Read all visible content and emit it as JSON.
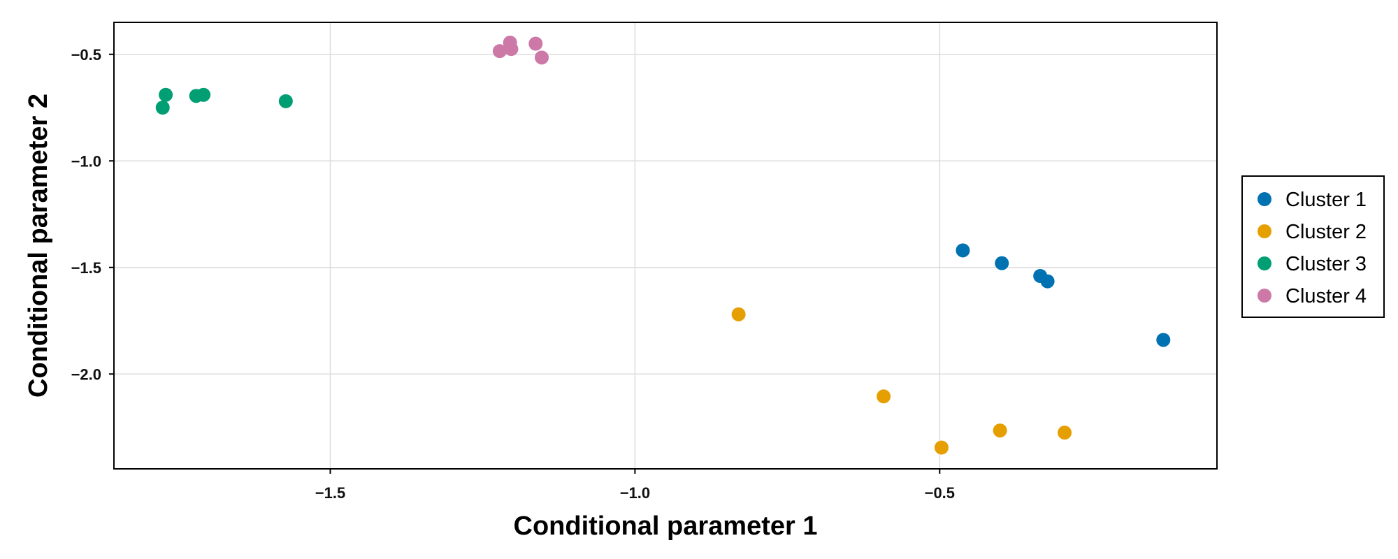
{
  "chart_data": {
    "type": "scatter",
    "title": "",
    "xlabel": "Conditional parameter 1",
    "ylabel": "Conditional parameter 2",
    "xlim": [
      -1.855,
      -0.045
    ],
    "ylim": [
      -2.445,
      -0.35
    ],
    "x_ticks": [
      -1.5,
      -1.0,
      -0.5
    ],
    "y_ticks": [
      -0.5,
      -1.0,
      -1.5,
      -2.0
    ],
    "x_tick_labels": [
      "−1.5",
      "−1.0",
      "−0.5"
    ],
    "y_tick_labels": [
      "−0.5",
      "−1.0",
      "−1.5",
      "−2.0"
    ],
    "grid": true,
    "legend_position": "right",
    "series": [
      {
        "name": "Cluster 1",
        "color": "#0072B2",
        "points": [
          {
            "x": -0.462,
            "y": -1.42
          },
          {
            "x": -0.398,
            "y": -1.48
          },
          {
            "x": -0.335,
            "y": -1.54
          },
          {
            "x": -0.323,
            "y": -1.565
          },
          {
            "x": -0.133,
            "y": -1.84
          }
        ]
      },
      {
        "name": "Cluster 2",
        "color": "#E69F00",
        "points": [
          {
            "x": -0.83,
            "y": -1.72
          },
          {
            "x": -0.592,
            "y": -2.105
          },
          {
            "x": -0.497,
            "y": -2.345
          },
          {
            "x": -0.401,
            "y": -2.265
          },
          {
            "x": -0.295,
            "y": -2.275
          }
        ]
      },
      {
        "name": "Cluster 3",
        "color": "#009E73",
        "points": [
          {
            "x": -1.775,
            "y": -0.75
          },
          {
            "x": -1.77,
            "y": -0.69
          },
          {
            "x": -1.72,
            "y": -0.695
          },
          {
            "x": -1.708,
            "y": -0.69
          },
          {
            "x": -1.573,
            "y": -0.72
          }
        ]
      },
      {
        "name": "Cluster 4",
        "color": "#CC79A7",
        "points": [
          {
            "x": -1.222,
            "y": -0.485
          },
          {
            "x": -1.205,
            "y": -0.445
          },
          {
            "x": -1.203,
            "y": -0.475
          },
          {
            "x": -1.163,
            "y": -0.45
          },
          {
            "x": -1.153,
            "y": -0.515
          }
        ]
      }
    ]
  }
}
